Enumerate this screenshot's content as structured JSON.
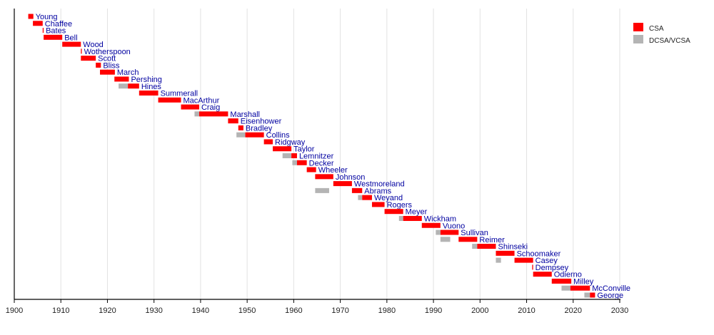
{
  "chart_data": {
    "type": "timeline",
    "xlim": [
      1900,
      2030
    ],
    "x_ticks": [
      "1900",
      "1910",
      "1920",
      "1930",
      "1940",
      "1950",
      "1960",
      "1970",
      "1980",
      "1990",
      "2000",
      "2010",
      "2020",
      "2030"
    ],
    "grid": "vertical",
    "legend_position": "top-right",
    "legend": [
      {
        "name": "CSA",
        "color": "#ff0000"
      },
      {
        "name": "DCSA/VCSA",
        "color": "#b4b4b4"
      }
    ],
    "rows": [
      {
        "name": "Young",
        "csa": [
          1903.0,
          1904.1
        ]
      },
      {
        "name": "Chaffee",
        "csa": [
          1904.0,
          1906.1
        ]
      },
      {
        "name": "Bates",
        "csa": [
          1906.1,
          1906.3
        ]
      },
      {
        "name": "Bell",
        "csa": [
          1906.3,
          1910.3
        ]
      },
      {
        "name": "Wood",
        "csa": [
          1910.3,
          1914.3
        ]
      },
      {
        "name": "Wotherspoon",
        "csa": [
          1914.3,
          1914.5
        ]
      },
      {
        "name": "Scott",
        "csa": [
          1914.3,
          1917.5
        ]
      },
      {
        "name": "Bliss",
        "csa": [
          1917.5,
          1918.6
        ]
      },
      {
        "name": "March",
        "csa": [
          1918.4,
          1921.6
        ]
      },
      {
        "name": "Pershing",
        "csa": [
          1921.5,
          1924.6
        ]
      },
      {
        "name": "Hines",
        "csa": [
          1924.4,
          1926.8
        ],
        "vcsa": [
          1922.4,
          1924.4
        ]
      },
      {
        "name": "Summerall",
        "csa": [
          1926.8,
          1930.9
        ]
      },
      {
        "name": "MacArthur",
        "csa": [
          1930.9,
          1935.8
        ]
      },
      {
        "name": "Craig",
        "csa": [
          1935.8,
          1939.7
        ]
      },
      {
        "name": "Marshall",
        "csa": [
          1939.7,
          1945.9
        ],
        "vcsa": [
          1938.7,
          1939.7
        ]
      },
      {
        "name": "Eisenhower",
        "csa": [
          1945.9,
          1948.1
        ]
      },
      {
        "name": "Bradley",
        "csa": [
          1948.1,
          1949.2
        ]
      },
      {
        "name": "Collins",
        "csa": [
          1949.6,
          1953.6
        ],
        "vcsa": [
          1947.7,
          1949.6
        ]
      },
      {
        "name": "Ridgway",
        "csa": [
          1953.6,
          1955.5
        ]
      },
      {
        "name": "Taylor",
        "csa": [
          1955.5,
          1959.5
        ]
      },
      {
        "name": "Lemnitzer",
        "csa": [
          1959.5,
          1960.7
        ],
        "vcsa": [
          1957.6,
          1959.5
        ]
      },
      {
        "name": "Decker",
        "csa": [
          1960.7,
          1962.8
        ],
        "vcsa": [
          1959.7,
          1960.7
        ]
      },
      {
        "name": "Wheeler",
        "csa": [
          1962.8,
          1964.8
        ]
      },
      {
        "name": "Johnson",
        "csa": [
          1964.6,
          1968.5
        ]
      },
      {
        "name": "Westmoreland",
        "csa": [
          1968.5,
          1972.5
        ]
      },
      {
        "name": "Abrams",
        "csa": [
          1972.5,
          1974.7
        ],
        "vcsa": [
          1964.6,
          1967.6
        ]
      },
      {
        "name": "Weyand",
        "csa": [
          1974.7,
          1976.8
        ],
        "vcsa": [
          1973.8,
          1974.7
        ]
      },
      {
        "name": "Rogers",
        "csa": [
          1976.8,
          1979.5
        ]
      },
      {
        "name": "Meyer",
        "csa": [
          1979.5,
          1983.5
        ]
      },
      {
        "name": "Wickham",
        "csa": [
          1983.5,
          1987.5
        ],
        "vcsa": [
          1982.6,
          1983.5
        ]
      },
      {
        "name": "Vuono",
        "csa": [
          1987.5,
          1991.5
        ]
      },
      {
        "name": "Sullivan",
        "csa": [
          1991.5,
          1995.4
        ],
        "vcsa": [
          1990.5,
          1991.5
        ]
      },
      {
        "name": "Reimer",
        "csa": [
          1995.4,
          1999.4
        ],
        "vcsa": [
          1991.5,
          1993.6
        ]
      },
      {
        "name": "Shinseki",
        "csa": [
          1999.4,
          2003.4
        ],
        "vcsa": [
          1998.3,
          1999.4
        ]
      },
      {
        "name": "Schoomaker",
        "csa": [
          2003.4,
          2007.4
        ]
      },
      {
        "name": "Casey",
        "csa": [
          2007.4,
          2011.4
        ],
        "vcsa": [
          2003.4,
          2004.5
        ]
      },
      {
        "name": "Dempsey",
        "csa": [
          2011.2,
          2011.4
        ]
      },
      {
        "name": "Odierno",
        "csa": [
          2011.4,
          2015.4
        ]
      },
      {
        "name": "Milley",
        "csa": [
          2015.4,
          2019.6
        ]
      },
      {
        "name": "McConville",
        "csa": [
          2019.4,
          2023.6
        ],
        "vcsa": [
          2017.5,
          2019.4
        ]
      },
      {
        "name": "George",
        "csa": [
          2023.6,
          2024.7
        ],
        "vcsa": [
          2022.4,
          2023.6
        ]
      }
    ]
  }
}
